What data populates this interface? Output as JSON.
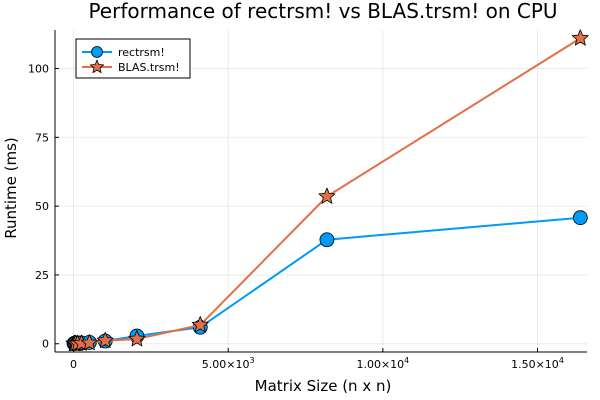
{
  "chart_data": {
    "type": "line",
    "title": "Performance of rectrsm! vs BLAS.trsm! on CPU",
    "xlabel": "Matrix Size (n x n)",
    "ylabel": "Runtime (ms)",
    "xlim": [
      -600,
      16600
    ],
    "ylim": [
      -3,
      114
    ],
    "x_ticks": [
      {
        "value": 0,
        "mantissa": "0",
        "exponent": ""
      },
      {
        "value": 5000,
        "mantissa": "5.00×10",
        "exponent": "3"
      },
      {
        "value": 10000,
        "mantissa": "1.00×10",
        "exponent": "4"
      },
      {
        "value": 15000,
        "mantissa": "1.50×10",
        "exponent": "4"
      }
    ],
    "y_ticks": [
      {
        "value": 0,
        "label": "0"
      },
      {
        "value": 25,
        "label": "25"
      },
      {
        "value": 50,
        "label": "50"
      },
      {
        "value": 75,
        "label": "75"
      },
      {
        "value": 100,
        "label": "100"
      }
    ],
    "grid": true,
    "legend_position": "top-left",
    "series": [
      {
        "name": "rectrsm!",
        "color": "#009af9",
        "marker": "circle",
        "points": [
          {
            "x": 16,
            "y": 0.1
          },
          {
            "x": 32,
            "y": 0.2
          },
          {
            "x": 64,
            "y": 0.2
          },
          {
            "x": 128,
            "y": 0.3
          },
          {
            "x": 256,
            "y": 0.3
          },
          {
            "x": 512,
            "y": 0.5
          },
          {
            "x": 1024,
            "y": 1.0
          },
          {
            "x": 2048,
            "y": 2.8
          },
          {
            "x": 4096,
            "y": 6.0
          },
          {
            "x": 8192,
            "y": 37.8
          },
          {
            "x": 16384,
            "y": 45.8
          }
        ]
      },
      {
        "name": "BLAS.trsm!",
        "color": "#e26f46",
        "marker": "star",
        "points": [
          {
            "x": 16,
            "y": 0.0
          },
          {
            "x": 32,
            "y": 0.0
          },
          {
            "x": 64,
            "y": 0.0
          },
          {
            "x": 128,
            "y": 0.0
          },
          {
            "x": 256,
            "y": 0.1
          },
          {
            "x": 512,
            "y": 0.3
          },
          {
            "x": 1024,
            "y": 1.1
          },
          {
            "x": 2048,
            "y": 1.7
          },
          {
            "x": 4096,
            "y": 6.8
          },
          {
            "x": 8192,
            "y": 53.5
          },
          {
            "x": 16384,
            "y": 111.0
          }
        ]
      }
    ]
  }
}
